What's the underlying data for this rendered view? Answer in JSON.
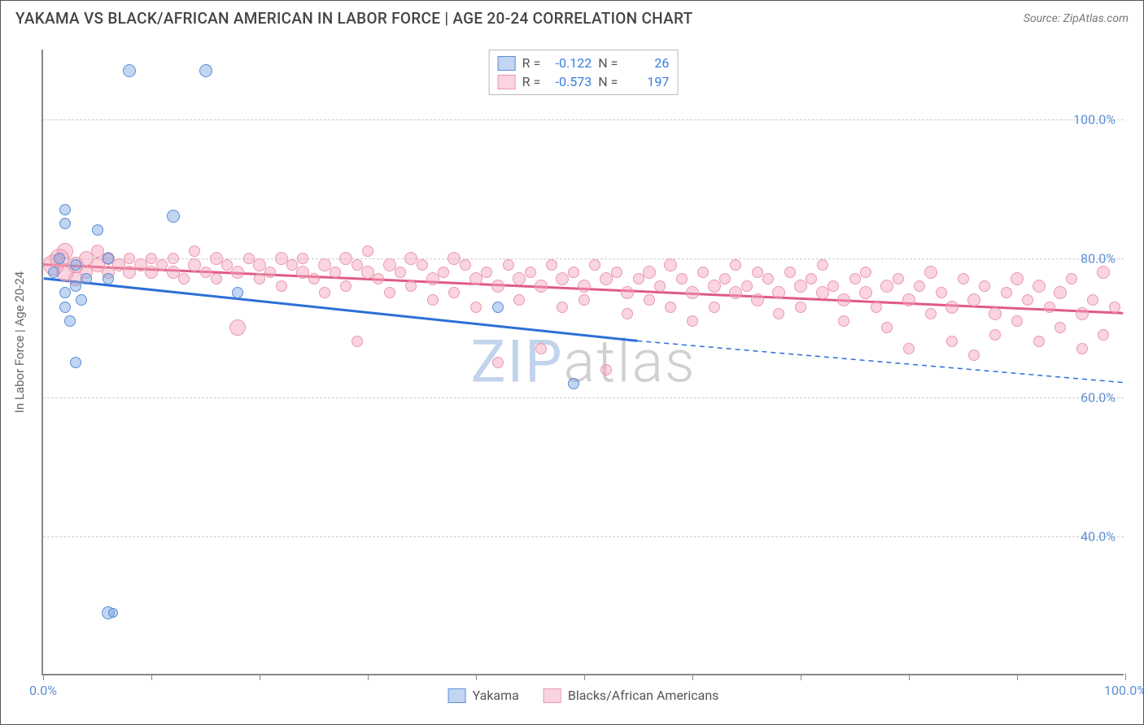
{
  "title": "YAKAMA VS BLACK/AFRICAN AMERICAN IN LABOR FORCE | AGE 20-24 CORRELATION CHART",
  "source_label": "Source: ZipAtlas.com",
  "y_axis_label": "In Labor Force | Age 20-24",
  "watermark": {
    "part1": "ZIP",
    "part2": "atlas"
  },
  "chart": {
    "type": "scatter",
    "xlim": [
      0,
      100
    ],
    "ylim": [
      20,
      110
    ],
    "y_ticks": [
      40,
      60,
      80,
      100
    ],
    "y_tick_labels": [
      "40.0%",
      "60.0%",
      "80.0%",
      "100.0%"
    ],
    "x_ticks": [
      0,
      10,
      20,
      30,
      40,
      50,
      60,
      70,
      80,
      90,
      100
    ],
    "x_tick_labels_shown": {
      "0": "0.0%",
      "100": "100.0%"
    },
    "background_color": "#ffffff",
    "grid_color": "#cccccc",
    "series": {
      "yakama": {
        "label": "Yakama",
        "fill_color": "rgba(120,165,225,0.45)",
        "stroke_color": "#5b8fd6",
        "marker_radius_min": 6,
        "marker_radius_max": 12,
        "trend_color": "#2d6fd6",
        "trend_width": 3,
        "trend": {
          "x1": 0,
          "y1": 77,
          "x2_solid": 55,
          "y2_solid": 68,
          "x2_dash": 100,
          "y2_dash": 62
        },
        "R": "-0.122",
        "N": "26",
        "points": [
          {
            "x": 1,
            "y": 78,
            "r": 7
          },
          {
            "x": 1.5,
            "y": 80,
            "r": 7
          },
          {
            "x": 2,
            "y": 85,
            "r": 7
          },
          {
            "x": 2,
            "y": 87,
            "r": 7
          },
          {
            "x": 2,
            "y": 75,
            "r": 7
          },
          {
            "x": 2,
            "y": 73,
            "r": 7
          },
          {
            "x": 2.5,
            "y": 71,
            "r": 7
          },
          {
            "x": 3,
            "y": 76,
            "r": 7
          },
          {
            "x": 3,
            "y": 79,
            "r": 7
          },
          {
            "x": 3.5,
            "y": 74,
            "r": 7
          },
          {
            "x": 3,
            "y": 65,
            "r": 7
          },
          {
            "x": 4,
            "y": 77,
            "r": 7
          },
          {
            "x": 5,
            "y": 84,
            "r": 7
          },
          {
            "x": 6,
            "y": 80,
            "r": 7
          },
          {
            "x": 6,
            "y": 29,
            "r": 8
          },
          {
            "x": 6.5,
            "y": 29,
            "r": 6
          },
          {
            "x": 8,
            "y": 107,
            "r": 8
          },
          {
            "x": 6,
            "y": 77,
            "r": 7
          },
          {
            "x": 15,
            "y": 107,
            "r": 8
          },
          {
            "x": 12,
            "y": 86,
            "r": 8
          },
          {
            "x": 18,
            "y": 75,
            "r": 7
          },
          {
            "x": 42,
            "y": 73,
            "r": 7
          },
          {
            "x": 49,
            "y": 62,
            "r": 7
          }
        ]
      },
      "black": {
        "label": "Blacks/African Americans",
        "fill_color": "rgba(245,160,185,0.45)",
        "stroke_color": "#e89ab0",
        "marker_radius_min": 6,
        "marker_radius_max": 14,
        "trend_color": "#e05a85",
        "trend_width": 3,
        "trend": {
          "x1": 0,
          "y1": 79,
          "x2_solid": 100,
          "y2_solid": 72,
          "x2_dash": 100,
          "y2_dash": 72
        },
        "R": "-0.573",
        "N": "197",
        "points": [
          {
            "x": 1,
            "y": 79,
            "r": 13
          },
          {
            "x": 1.5,
            "y": 80,
            "r": 12
          },
          {
            "x": 2,
            "y": 78,
            "r": 11
          },
          {
            "x": 2,
            "y": 81,
            "r": 10
          },
          {
            "x": 3,
            "y": 79,
            "r": 10
          },
          {
            "x": 3,
            "y": 77,
            "r": 9
          },
          {
            "x": 4,
            "y": 80,
            "r": 9
          },
          {
            "x": 4,
            "y": 78,
            "r": 8
          },
          {
            "x": 5,
            "y": 79,
            "r": 9
          },
          {
            "x": 5,
            "y": 81,
            "r": 8
          },
          {
            "x": 6,
            "y": 78,
            "r": 8
          },
          {
            "x": 6,
            "y": 80,
            "r": 8
          },
          {
            "x": 7,
            "y": 79,
            "r": 8
          },
          {
            "x": 8,
            "y": 78,
            "r": 8
          },
          {
            "x": 8,
            "y": 80,
            "r": 7
          },
          {
            "x": 9,
            "y": 79,
            "r": 8
          },
          {
            "x": 10,
            "y": 78,
            "r": 8
          },
          {
            "x": 10,
            "y": 80,
            "r": 7
          },
          {
            "x": 11,
            "y": 79,
            "r": 7
          },
          {
            "x": 12,
            "y": 78,
            "r": 8
          },
          {
            "x": 12,
            "y": 80,
            "r": 7
          },
          {
            "x": 13,
            "y": 77,
            "r": 7
          },
          {
            "x": 14,
            "y": 79,
            "r": 8
          },
          {
            "x": 14,
            "y": 81,
            "r": 7
          },
          {
            "x": 15,
            "y": 78,
            "r": 7
          },
          {
            "x": 16,
            "y": 80,
            "r": 8
          },
          {
            "x": 16,
            "y": 77,
            "r": 7
          },
          {
            "x": 17,
            "y": 79,
            "r": 7
          },
          {
            "x": 18,
            "y": 78,
            "r": 8
          },
          {
            "x": 18,
            "y": 70,
            "r": 10
          },
          {
            "x": 19,
            "y": 80,
            "r": 7
          },
          {
            "x": 20,
            "y": 79,
            "r": 8
          },
          {
            "x": 20,
            "y": 77,
            "r": 7
          },
          {
            "x": 21,
            "y": 78,
            "r": 7
          },
          {
            "x": 22,
            "y": 80,
            "r": 8
          },
          {
            "x": 22,
            "y": 76,
            "r": 7
          },
          {
            "x": 23,
            "y": 79,
            "r": 7
          },
          {
            "x": 24,
            "y": 78,
            "r": 8
          },
          {
            "x": 24,
            "y": 80,
            "r": 7
          },
          {
            "x": 25,
            "y": 77,
            "r": 7
          },
          {
            "x": 26,
            "y": 79,
            "r": 8
          },
          {
            "x": 26,
            "y": 75,
            "r": 7
          },
          {
            "x": 27,
            "y": 78,
            "r": 7
          },
          {
            "x": 28,
            "y": 80,
            "r": 8
          },
          {
            "x": 28,
            "y": 76,
            "r": 7
          },
          {
            "x": 29,
            "y": 79,
            "r": 7
          },
          {
            "x": 29,
            "y": 68,
            "r": 7
          },
          {
            "x": 30,
            "y": 78,
            "r": 8
          },
          {
            "x": 30,
            "y": 81,
            "r": 7
          },
          {
            "x": 31,
            "y": 77,
            "r": 7
          },
          {
            "x": 32,
            "y": 79,
            "r": 8
          },
          {
            "x": 32,
            "y": 75,
            "r": 7
          },
          {
            "x": 33,
            "y": 78,
            "r": 7
          },
          {
            "x": 34,
            "y": 80,
            "r": 8
          },
          {
            "x": 34,
            "y": 76,
            "r": 7
          },
          {
            "x": 35,
            "y": 79,
            "r": 7
          },
          {
            "x": 36,
            "y": 77,
            "r": 8
          },
          {
            "x": 36,
            "y": 74,
            "r": 7
          },
          {
            "x": 37,
            "y": 78,
            "r": 7
          },
          {
            "x": 38,
            "y": 80,
            "r": 8
          },
          {
            "x": 38,
            "y": 75,
            "r": 7
          },
          {
            "x": 39,
            "y": 79,
            "r": 7
          },
          {
            "x": 40,
            "y": 77,
            "r": 8
          },
          {
            "x": 40,
            "y": 73,
            "r": 7
          },
          {
            "x": 41,
            "y": 78,
            "r": 7
          },
          {
            "x": 42,
            "y": 76,
            "r": 8
          },
          {
            "x": 42,
            "y": 65,
            "r": 7
          },
          {
            "x": 43,
            "y": 79,
            "r": 7
          },
          {
            "x": 44,
            "y": 77,
            "r": 8
          },
          {
            "x": 44,
            "y": 74,
            "r": 7
          },
          {
            "x": 45,
            "y": 78,
            "r": 7
          },
          {
            "x": 46,
            "y": 76,
            "r": 8
          },
          {
            "x": 46,
            "y": 67,
            "r": 7
          },
          {
            "x": 47,
            "y": 79,
            "r": 7
          },
          {
            "x": 48,
            "y": 77,
            "r": 8
          },
          {
            "x": 48,
            "y": 73,
            "r": 7
          },
          {
            "x": 49,
            "y": 78,
            "r": 7
          },
          {
            "x": 50,
            "y": 76,
            "r": 8
          },
          {
            "x": 50,
            "y": 74,
            "r": 7
          },
          {
            "x": 51,
            "y": 79,
            "r": 7
          },
          {
            "x": 52,
            "y": 77,
            "r": 8
          },
          {
            "x": 52,
            "y": 64,
            "r": 7
          },
          {
            "x": 53,
            "y": 78,
            "r": 7
          },
          {
            "x": 54,
            "y": 75,
            "r": 8
          },
          {
            "x": 54,
            "y": 72,
            "r": 7
          },
          {
            "x": 55,
            "y": 77,
            "r": 7
          },
          {
            "x": 56,
            "y": 78,
            "r": 8
          },
          {
            "x": 56,
            "y": 74,
            "r": 7
          },
          {
            "x": 57,
            "y": 76,
            "r": 7
          },
          {
            "x": 58,
            "y": 79,
            "r": 8
          },
          {
            "x": 58,
            "y": 73,
            "r": 7
          },
          {
            "x": 59,
            "y": 77,
            "r": 7
          },
          {
            "x": 60,
            "y": 75,
            "r": 8
          },
          {
            "x": 60,
            "y": 71,
            "r": 7
          },
          {
            "x": 61,
            "y": 78,
            "r": 7
          },
          {
            "x": 62,
            "y": 76,
            "r": 8
          },
          {
            "x": 62,
            "y": 73,
            "r": 7
          },
          {
            "x": 63,
            "y": 77,
            "r": 7
          },
          {
            "x": 64,
            "y": 75,
            "r": 8
          },
          {
            "x": 64,
            "y": 79,
            "r": 7
          },
          {
            "x": 65,
            "y": 76,
            "r": 7
          },
          {
            "x": 66,
            "y": 74,
            "r": 8
          },
          {
            "x": 66,
            "y": 78,
            "r": 7
          },
          {
            "x": 67,
            "y": 77,
            "r": 7
          },
          {
            "x": 68,
            "y": 75,
            "r": 8
          },
          {
            "x": 68,
            "y": 72,
            "r": 7
          },
          {
            "x": 69,
            "y": 78,
            "r": 7
          },
          {
            "x": 70,
            "y": 76,
            "r": 8
          },
          {
            "x": 70,
            "y": 73,
            "r": 7
          },
          {
            "x": 71,
            "y": 77,
            "r": 7
          },
          {
            "x": 72,
            "y": 75,
            "r": 8
          },
          {
            "x": 72,
            "y": 79,
            "r": 7
          },
          {
            "x": 73,
            "y": 76,
            "r": 7
          },
          {
            "x": 74,
            "y": 74,
            "r": 8
          },
          {
            "x": 74,
            "y": 71,
            "r": 7
          },
          {
            "x": 75,
            "y": 77,
            "r": 7
          },
          {
            "x": 76,
            "y": 75,
            "r": 8
          },
          {
            "x": 76,
            "y": 78,
            "r": 7
          },
          {
            "x": 77,
            "y": 73,
            "r": 7
          },
          {
            "x": 78,
            "y": 76,
            "r": 8
          },
          {
            "x": 78,
            "y": 70,
            "r": 7
          },
          {
            "x": 79,
            "y": 77,
            "r": 7
          },
          {
            "x": 80,
            "y": 74,
            "r": 8
          },
          {
            "x": 80,
            "y": 67,
            "r": 7
          },
          {
            "x": 81,
            "y": 76,
            "r": 7
          },
          {
            "x": 82,
            "y": 78,
            "r": 8
          },
          {
            "x": 82,
            "y": 72,
            "r": 7
          },
          {
            "x": 83,
            "y": 75,
            "r": 7
          },
          {
            "x": 84,
            "y": 73,
            "r": 8
          },
          {
            "x": 84,
            "y": 68,
            "r": 7
          },
          {
            "x": 85,
            "y": 77,
            "r": 7
          },
          {
            "x": 86,
            "y": 74,
            "r": 8
          },
          {
            "x": 86,
            "y": 66,
            "r": 7
          },
          {
            "x": 87,
            "y": 76,
            "r": 7
          },
          {
            "x": 88,
            "y": 72,
            "r": 8
          },
          {
            "x": 88,
            "y": 69,
            "r": 7
          },
          {
            "x": 89,
            "y": 75,
            "r": 7
          },
          {
            "x": 90,
            "y": 77,
            "r": 8
          },
          {
            "x": 90,
            "y": 71,
            "r": 7
          },
          {
            "x": 91,
            "y": 74,
            "r": 7
          },
          {
            "x": 92,
            "y": 76,
            "r": 8
          },
          {
            "x": 92,
            "y": 68,
            "r": 7
          },
          {
            "x": 93,
            "y": 73,
            "r": 7
          },
          {
            "x": 94,
            "y": 75,
            "r": 8
          },
          {
            "x": 94,
            "y": 70,
            "r": 7
          },
          {
            "x": 95,
            "y": 77,
            "r": 7
          },
          {
            "x": 96,
            "y": 72,
            "r": 8
          },
          {
            "x": 96,
            "y": 67,
            "r": 7
          },
          {
            "x": 97,
            "y": 74,
            "r": 7
          },
          {
            "x": 98,
            "y": 78,
            "r": 8
          },
          {
            "x": 98,
            "y": 69,
            "r": 7
          },
          {
            "x": 99,
            "y": 73,
            "r": 7
          }
        ]
      }
    }
  },
  "stats_box": {
    "rows": [
      {
        "swatch_fill": "rgba(120,165,225,0.45)",
        "swatch_border": "#5b8fd6",
        "R_label": "R =",
        "R": "-0.122",
        "N_label": "N =",
        "N": "26"
      },
      {
        "swatch_fill": "rgba(245,160,185,0.45)",
        "swatch_border": "#e89ab0",
        "R_label": "R =",
        "R": "-0.573",
        "N_label": "N =",
        "N": "197"
      }
    ]
  },
  "legend": {
    "items": [
      {
        "swatch_fill": "rgba(120,165,225,0.45)",
        "swatch_border": "#5b8fd6",
        "label": "Yakama"
      },
      {
        "swatch_fill": "rgba(245,160,185,0.45)",
        "swatch_border": "#e89ab0",
        "label": "Blacks/African Americans"
      }
    ]
  }
}
